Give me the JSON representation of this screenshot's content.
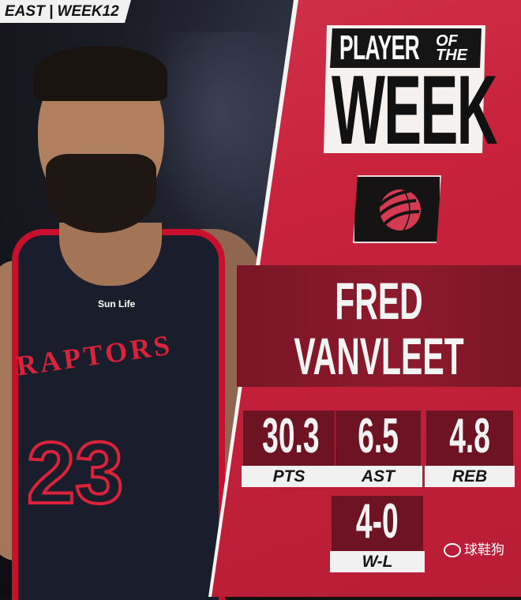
{
  "tag": "EAST | WEEK12",
  "title": {
    "line1": "PLAYER",
    "line1b": "OF THE",
    "line2": "WEEK"
  },
  "team_logo": "raptors-claw-basketball-icon",
  "jersey": {
    "team": "RAPTORS",
    "number": "23",
    "sponsor": "Sun Life"
  },
  "player": {
    "first": "FRED",
    "last": "VANVLEET"
  },
  "stats": [
    {
      "value": "30.3",
      "label": "PTS"
    },
    {
      "value": "6.5",
      "label": "AST"
    },
    {
      "value": "4.8",
      "label": "REB"
    },
    {
      "value": "4-0",
      "label": "W-L"
    }
  ],
  "watermark": "球鞋狗",
  "colors": {
    "primary": "#c8223c",
    "dark": "#6d1322",
    "band": "#8c1a2c"
  }
}
